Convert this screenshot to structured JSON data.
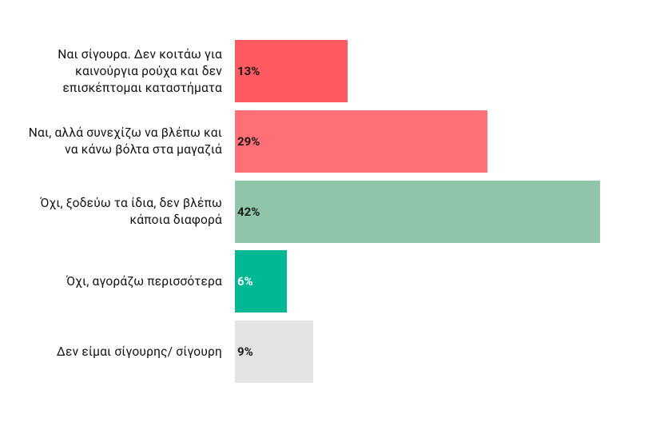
{
  "chart_data": {
    "type": "bar",
    "orientation": "horizontal",
    "categories": [
      "Ναι σίγουρα. Δεν κοιτάω για καινούργια ρούχα και δεν επισκέπτομαι καταστήματα",
      "Ναι, αλλά συνεχίζω να βλέπω και να κάνω βόλτα στα μαγαζιά",
      "Όχι, ξοδεύω τα ίδια, δεν βλέπω κάποια διαφορά",
      "Όχι, αγοράζω περισσότερα",
      "Δεν είμαι σίγουρης/ σίγουρη"
    ],
    "values": [
      13,
      29,
      42,
      6,
      9
    ],
    "value_labels": [
      "13%",
      "29%",
      "42%",
      "6%",
      "9%"
    ],
    "colors": [
      "#ff5a5f",
      "#ff6f76",
      "#8fc5a8",
      "#00b894",
      "#e3e3e3"
    ],
    "label_colors": [
      "#1a1a1a",
      "#1a1a1a",
      "#1a1a1a",
      "#ffffff",
      "#1a1a1a"
    ]
  }
}
